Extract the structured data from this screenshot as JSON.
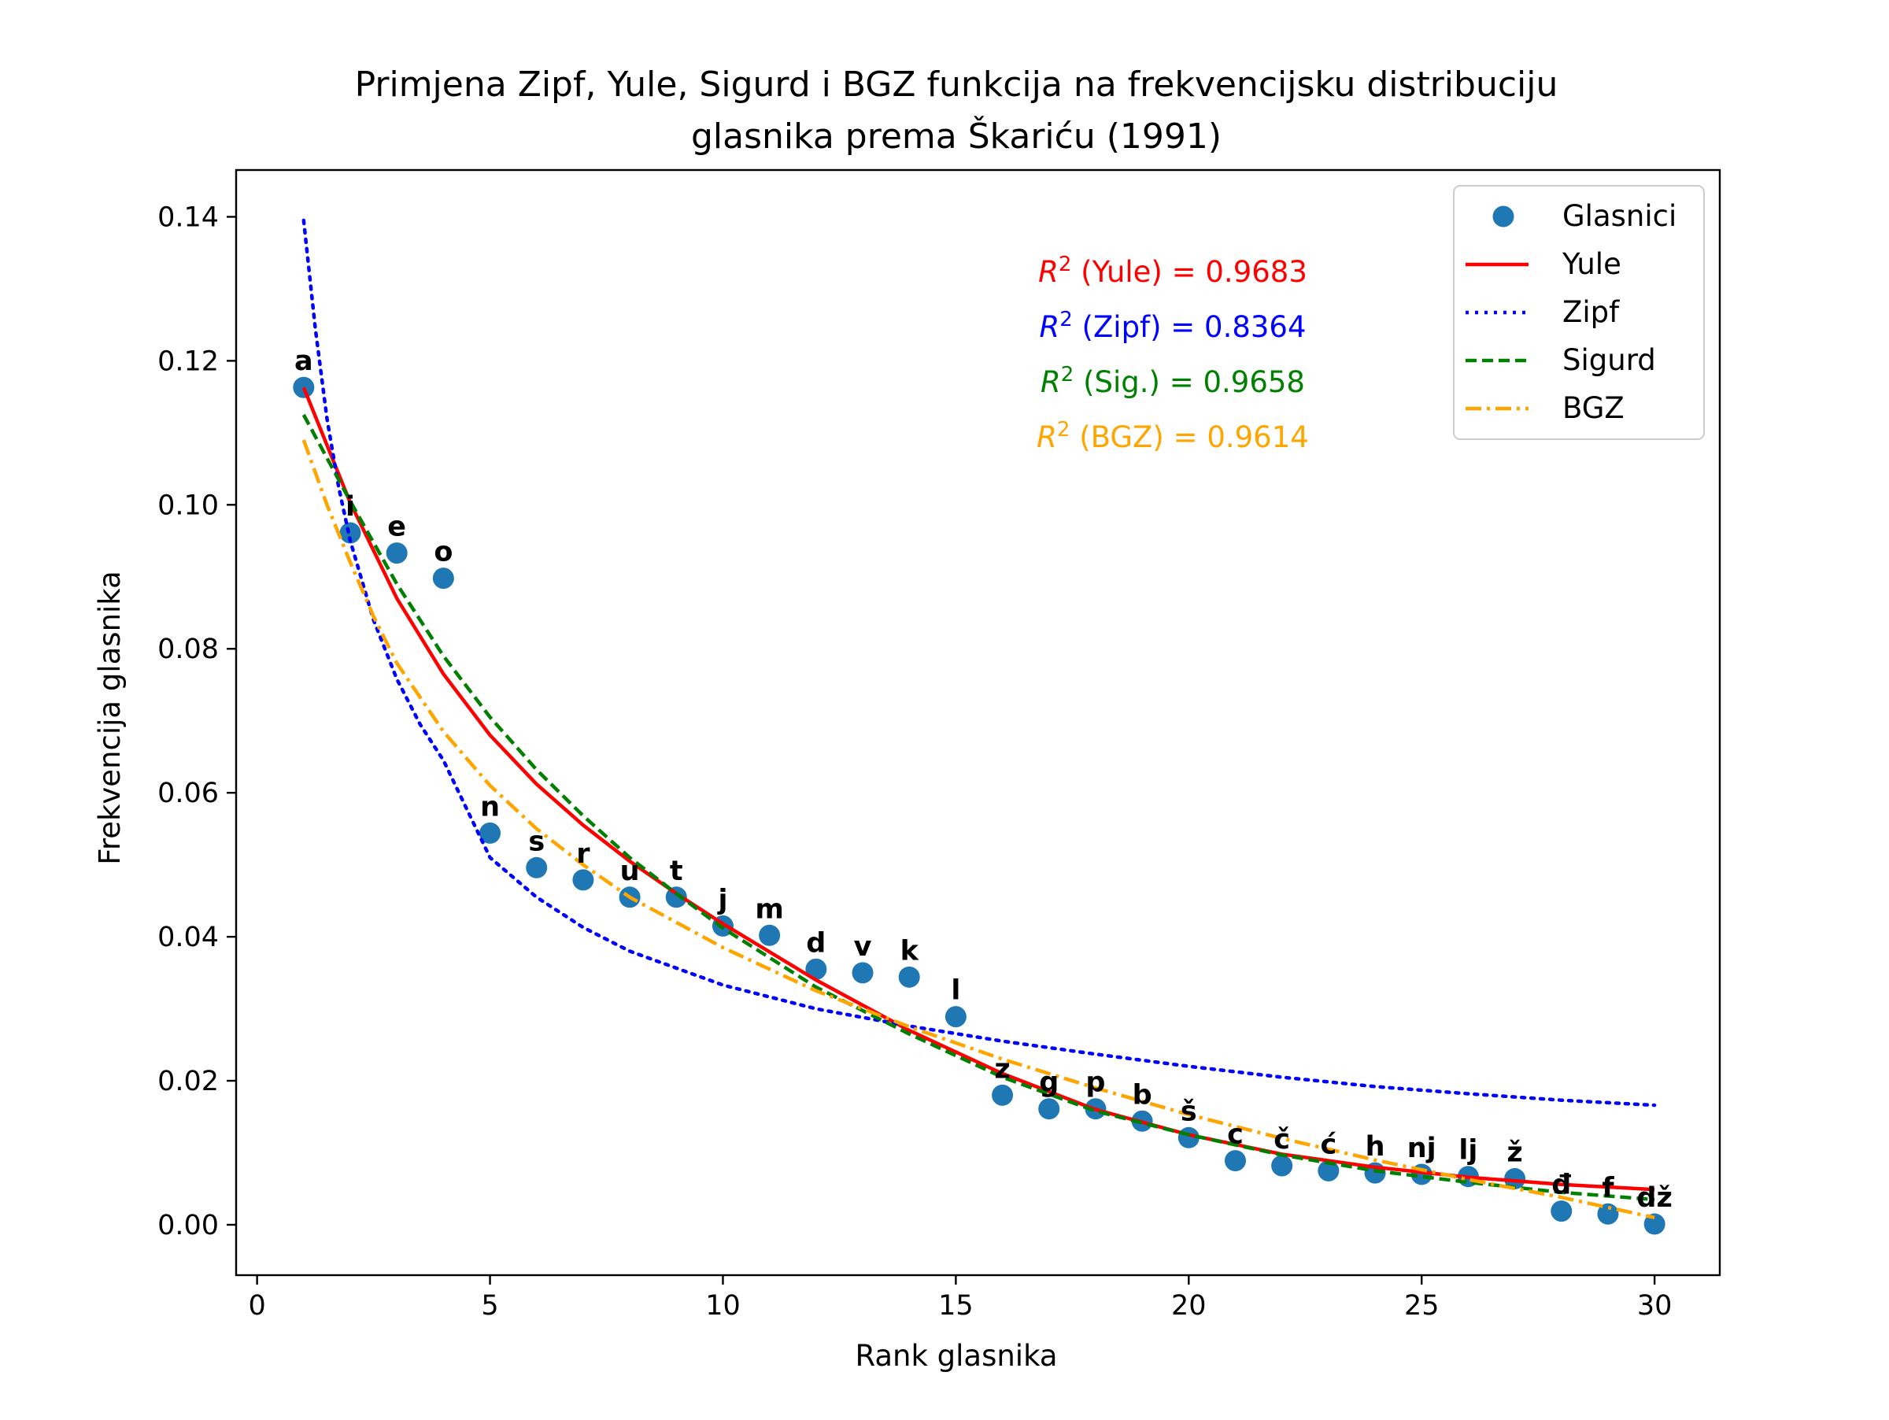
{
  "chart_data": {
    "type": "scatter",
    "title_line1": "Primjena Zipf, Yule, Sigurd i BGZ funkcija na frekvencijsku distribuciju",
    "title_line2": "glasnika prema Škariću (1991)",
    "xlabel": "Rank glasnika",
    "ylabel": "Frekvencija glasnika",
    "xlim": [
      -0.45,
      31.4
    ],
    "ylim": [
      -0.007,
      0.1465
    ],
    "x_ticks": [
      0,
      5,
      10,
      15,
      20,
      25,
      30
    ],
    "y_ticks": [
      0.0,
      0.02,
      0.04,
      0.06,
      0.08,
      0.1,
      0.12,
      0.14
    ],
    "y_tick_labels": [
      "0.00",
      "0.02",
      "0.04",
      "0.06",
      "0.08",
      "0.10",
      "0.12",
      "0.14"
    ],
    "grid": false,
    "legend_position": "top-right",
    "points": {
      "name": "Glasnici",
      "color": "#1f77b4",
      "x": [
        1,
        2,
        3,
        4,
        5,
        6,
        7,
        8,
        9,
        10,
        11,
        12,
        13,
        14,
        15,
        16,
        17,
        18,
        19,
        20,
        21,
        22,
        23,
        24,
        25,
        26,
        27,
        28,
        29,
        30
      ],
      "y": [
        0.1163,
        0.0961,
        0.0933,
        0.0898,
        0.0544,
        0.0496,
        0.0479,
        0.0455,
        0.0455,
        0.0415,
        0.0402,
        0.0355,
        0.035,
        0.0344,
        0.0289,
        0.018,
        0.0161,
        0.0161,
        0.0144,
        0.0121,
        0.0089,
        0.0082,
        0.0075,
        0.0072,
        0.007,
        0.0067,
        0.0064,
        0.0019,
        0.0015,
        0.0001
      ],
      "labels": [
        "a",
        "i",
        "e",
        "o",
        "n",
        "s",
        "r",
        "u",
        "t",
        "j",
        "m",
        "d",
        "v",
        "k",
        "l",
        "z",
        "g",
        "p",
        "b",
        "š",
        "c",
        "č",
        "ć",
        "h",
        "nj",
        "lj",
        "ž",
        "đ",
        "f",
        "dž"
      ]
    },
    "series": [
      {
        "name": "Yule",
        "color": "#ff0000",
        "style": "solid",
        "x": [
          1,
          2,
          3,
          4,
          5,
          6,
          7,
          8,
          9,
          10,
          12,
          14,
          16,
          18,
          20,
          22,
          24,
          26,
          28,
          30
        ],
        "y": [
          0.1163,
          0.1003,
          0.087,
          0.0765,
          0.068,
          0.0612,
          0.0555,
          0.0505,
          0.046,
          0.0418,
          0.034,
          0.027,
          0.021,
          0.016,
          0.0125,
          0.0098,
          0.008,
          0.0066,
          0.0056,
          0.0049
        ]
      },
      {
        "name": "Zipf",
        "color": "#0000ff",
        "style": "dotted",
        "x": [
          1,
          1.25,
          1.5,
          1.75,
          2,
          2.5,
          3,
          3.5,
          4,
          5,
          6,
          7,
          8,
          10,
          12,
          14,
          16,
          18,
          20,
          22,
          24,
          26,
          28,
          30
        ],
        "y": [
          0.1395,
          0.1245,
          0.112,
          0.1025,
          0.095,
          0.084,
          0.0758,
          0.0695,
          0.0645,
          0.051,
          0.0455,
          0.0413,
          0.038,
          0.0333,
          0.03,
          0.0276,
          0.0255,
          0.0237,
          0.022,
          0.0205,
          0.0192,
          0.0182,
          0.0173,
          0.0166
        ]
      },
      {
        "name": "Sigurd",
        "color": "#008000",
        "style": "dashed",
        "x": [
          1,
          2,
          3,
          4,
          5,
          6,
          7,
          8,
          9,
          10,
          12,
          14,
          16,
          18,
          20,
          22,
          24,
          26,
          28,
          30
        ],
        "y": [
          0.1125,
          0.1005,
          0.089,
          0.079,
          0.0705,
          0.0632,
          0.0568,
          0.051,
          0.046,
          0.0412,
          0.033,
          0.0265,
          0.0205,
          0.0158,
          0.0125,
          0.0097,
          0.0075,
          0.0059,
          0.0045,
          0.0035
        ]
      },
      {
        "name": "BGZ",
        "color": "#ffa500",
        "style": "dashdot",
        "x": [
          1,
          1.5,
          2,
          2.5,
          3,
          4,
          5,
          6,
          7,
          8,
          10,
          12,
          14,
          16,
          18,
          20,
          22,
          24,
          26,
          28,
          30
        ],
        "y": [
          0.109,
          0.1,
          0.092,
          0.0845,
          0.078,
          0.0685,
          0.061,
          0.055,
          0.05,
          0.0455,
          0.0385,
          0.0325,
          0.0275,
          0.023,
          0.019,
          0.0153,
          0.012,
          0.009,
          0.0063,
          0.0038,
          0.001
        ]
      }
    ],
    "annotations": [
      {
        "text_prefix": "R",
        "sup": "2",
        "text": " (Yule) = 0.9683",
        "color": "#ff0000"
      },
      {
        "text_prefix": "R",
        "sup": "2",
        "text": " (Zipf) = 0.8364",
        "color": "#0000ff"
      },
      {
        "text_prefix": "R",
        "sup": "2",
        "text": " (Sig.) = 0.9658",
        "color": "#008000"
      },
      {
        "text_prefix": "R",
        "sup": "2",
        "text": " (BGZ) = 0.9614",
        "color": "#ffa500"
      }
    ]
  }
}
